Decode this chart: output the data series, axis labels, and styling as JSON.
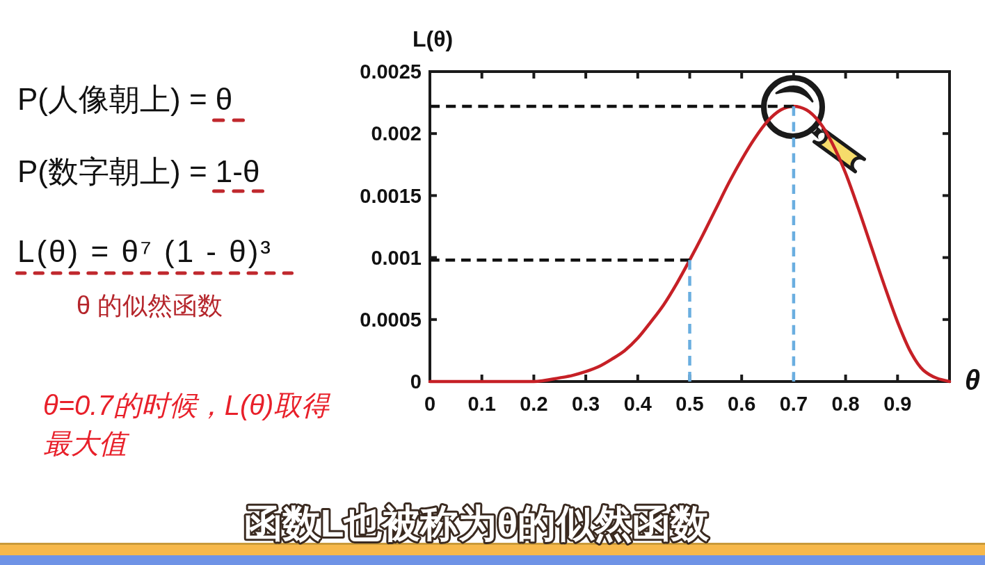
{
  "chart_data": {
    "type": "line",
    "xlabel": "θ",
    "ylabel": "L(θ)",
    "xlim": [
      0,
      1
    ],
    "ylim": [
      0,
      0.0025
    ],
    "xticks": [
      0,
      0.1,
      0.2,
      0.3,
      0.4,
      0.5,
      0.6,
      0.7,
      0.8,
      0.9
    ],
    "yticks": [
      0,
      0.0005,
      0.001,
      0.0015,
      0.002,
      0.0025
    ],
    "series": [
      {
        "color": "#c62026",
        "x": [
          0,
          0.05,
          0.1,
          0.15,
          0.2,
          0.25,
          0.275,
          0.3,
          0.325,
          0.35,
          0.375,
          0.4,
          0.425,
          0.45,
          0.475,
          0.5,
          0.525,
          0.55,
          0.575,
          0.6,
          0.625,
          0.65,
          0.675,
          0.7,
          0.725,
          0.75,
          0.8,
          0.825,
          0.85,
          0.875,
          0.9,
          0.925,
          0.95,
          1
        ],
        "values": [
          0,
          0,
          0,
          0,
          0,
          3e-05,
          5e-05,
          8e-05,
          0.00012,
          0.00018,
          0.00025,
          0.00035,
          0.00048,
          0.00062,
          0.00079,
          0.00098,
          0.00118,
          0.00139,
          0.0016,
          0.00179,
          0.00196,
          0.0021,
          0.00219,
          0.00222,
          0.00219,
          0.00209,
          0.00168,
          0.00139,
          0.00108,
          0.00077,
          0.00048,
          0.00024,
          9e-05,
          0
        ]
      },
      {
        "color": "#111111",
        "line_style": "dashed",
        "x": [
          0,
          0.7
        ],
        "values": [
          0.00222,
          0.00222
        ]
      },
      {
        "color": "#111111",
        "line_style": "dashed",
        "x": [
          0,
          0.5
        ],
        "values": [
          0.00098,
          0.00098
        ]
      },
      {
        "color": "#6aaee0",
        "line_style": "dashed",
        "x": [
          0.5,
          0.5
        ],
        "values": [
          0,
          0.00098
        ]
      },
      {
        "color": "#6aaee0",
        "line_style": "dashed",
        "x": [
          0.7,
          0.7
        ],
        "values": [
          0,
          0.00222
        ]
      }
    ],
    "annotations": [
      "P(人像朝上) = θ",
      "P(数字朝上) = 1-θ",
      "L(θ) = θ⁷ (1 - θ)³",
      "θ 的似然函数",
      "θ=0.7的时候，L(θ)取得最大值",
      "函数L也被称为θ的似然函数"
    ]
  }
}
